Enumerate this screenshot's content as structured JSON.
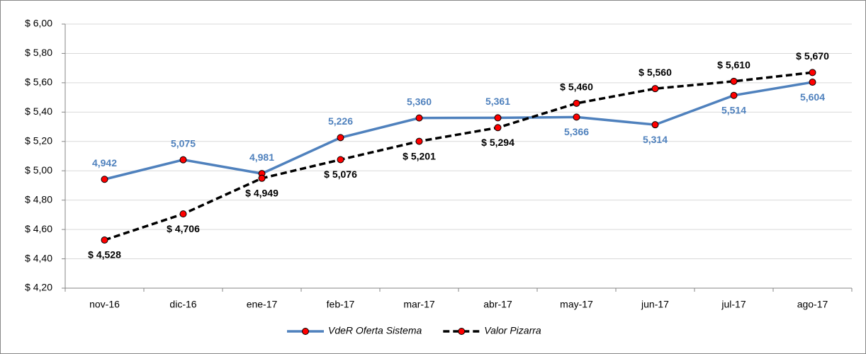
{
  "chart_data": {
    "type": "line",
    "categories": [
      "nov-16",
      "dic-16",
      "ene-17",
      "feb-17",
      "mar-17",
      "abr-17",
      "may-17",
      "jun-17",
      "jul-17",
      "ago-17"
    ],
    "series": [
      {
        "name": "VdeR Oferta Sistema",
        "color": "#4f81bd",
        "dashed": false,
        "values": [
          4.942,
          5.075,
          4.981,
          5.226,
          5.36,
          5.361,
          5.366,
          5.314,
          5.514,
          5.604
        ],
        "value_labels": [
          "4,942",
          "5,075",
          "4,981",
          "5,226",
          "5,360",
          "5,361",
          "5,366",
          "5,314",
          "5,514",
          "5,604"
        ]
      },
      {
        "name": "Valor Pizarra",
        "color": "#000000",
        "dashed": true,
        "values": [
          4.528,
          4.706,
          4.949,
          5.076,
          5.201,
          5.294,
          5.46,
          5.56,
          5.61,
          5.67
        ],
        "value_labels": [
          "$ 4,528",
          "$ 4,706",
          "$ 4,949",
          "$ 5,076",
          "$ 5,201",
          "$ 5,294",
          "$ 5,460",
          "$ 5,560",
          "$ 5,610",
          "$ 5,670"
        ]
      }
    ],
    "marker_color": "#ff0000",
    "ylim": [
      4.2,
      6.0
    ],
    "yticks": [
      {
        "value": 4.2,
        "label": "$ 4,20"
      },
      {
        "value": 4.4,
        "label": "$ 4,40"
      },
      {
        "value": 4.6,
        "label": "$ 4,60"
      },
      {
        "value": 4.8,
        "label": "$ 4,80"
      },
      {
        "value": 5.0,
        "label": "$ 5,00"
      },
      {
        "value": 5.2,
        "label": "$ 5,20"
      },
      {
        "value": 5.4,
        "label": "$ 5,40"
      },
      {
        "value": 5.6,
        "label": "$ 5,60"
      },
      {
        "value": 5.8,
        "label": "$ 5,80"
      },
      {
        "value": 6.0,
        "label": "$ 6,00"
      }
    ],
    "grid": true,
    "legend": "bottom"
  }
}
